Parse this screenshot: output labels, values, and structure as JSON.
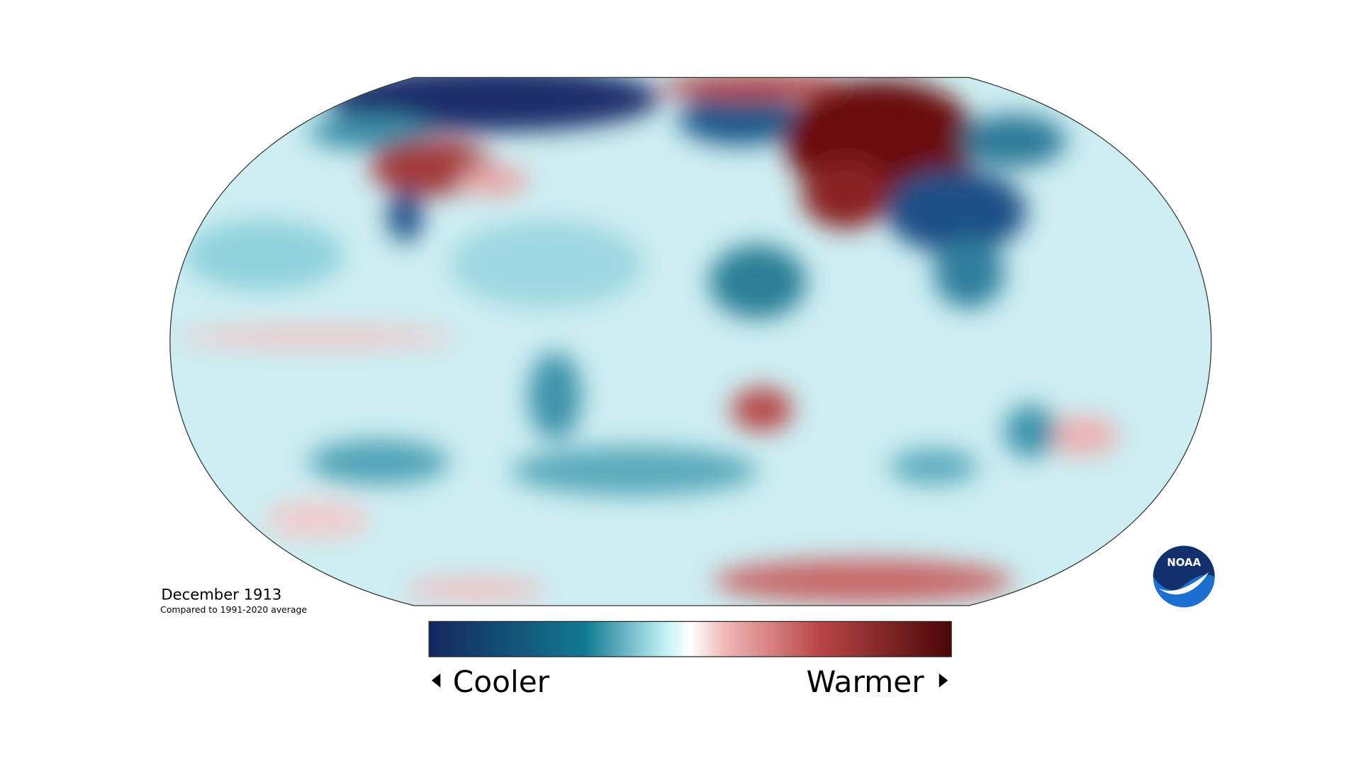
{
  "map": {
    "title": "December 1913",
    "subtitle": "Compared to 1991-2020 average"
  },
  "legend": {
    "low_label": "Cooler",
    "high_label": "Warmer"
  },
  "logo": {
    "text": "NOAA"
  }
}
